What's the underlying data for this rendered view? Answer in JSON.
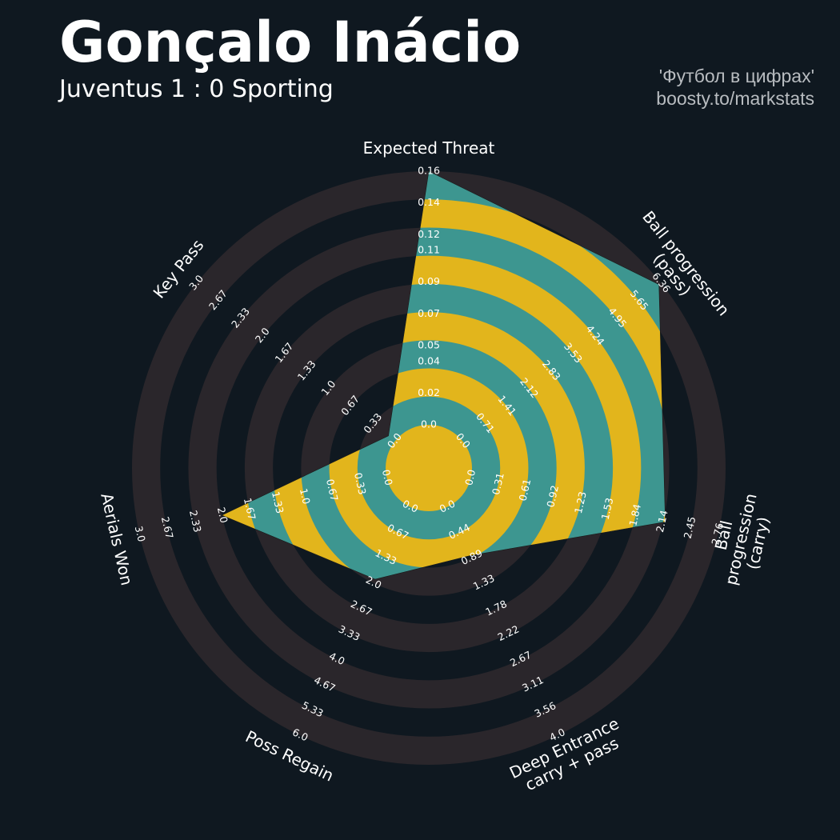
{
  "chart_data": {
    "type": "radar",
    "title": "Gonçalo Inácio",
    "subtitle": "Juventus 1 : 0 Sporting",
    "credits": [
      "'Футбол в цифрах'",
      "boosty.to/markstats"
    ],
    "categories": [
      "Expected Threat",
      "Ball progression (pass)",
      "Ball progression (carry)",
      "Deep Entrance\ncarry + pass",
      "Poss Regain",
      "Aerials Won",
      "Key Pass"
    ],
    "values": [
      0.16,
      6.3,
      2.17,
      0.85,
      1.9,
      2.0,
      0.1
    ],
    "ranges": [
      [
        0,
        0.16
      ],
      [
        0,
        6.36
      ],
      [
        0,
        2.76
      ],
      [
        0,
        4.0
      ],
      [
        0,
        6.0
      ],
      [
        0,
        3.0
      ],
      [
        0,
        3.0
      ]
    ],
    "ticks": [
      [
        {
          "value": 0,
          "label": "0.0"
        },
        0.02,
        0.04,
        0.05,
        0.07,
        0.09,
        0.11,
        0.12,
        0.14,
        0.16
      ],
      [
        {
          "value": 0,
          "label": "0.0"
        },
        0.71,
        1.41,
        2.12,
        2.83,
        3.53,
        4.24,
        4.95,
        5.65,
        6.36
      ],
      [
        {
          "value": 0,
          "label": "0.0"
        },
        0.31,
        0.61,
        0.92,
        1.23,
        1.53,
        1.84,
        2.14,
        2.45,
        2.76
      ],
      [
        {
          "value": 0,
          "label": "0.0"
        },
        0.44,
        0.89,
        1.33,
        1.78,
        2.22,
        2.67,
        3.11,
        3.56,
        {
          "value": 4,
          "label": "4.0"
        }
      ],
      [
        {
          "value": 0,
          "label": "0.0"
        },
        0.67,
        1.33,
        {
          "value": 2,
          "label": "2.0"
        },
        2.67,
        3.33,
        {
          "value": 4,
          "label": "4.0"
        },
        4.67,
        5.33,
        {
          "value": 6,
          "label": "6.0"
        }
      ],
      [
        {
          "value": 0,
          "label": "0.0"
        },
        0.33,
        0.67,
        {
          "value": 1,
          "label": "1.0"
        },
        1.33,
        1.67,
        {
          "value": 2,
          "label": "2.0"
        },
        2.33,
        2.67,
        {
          "value": 3,
          "label": "3.0"
        }
      ],
      [
        {
          "value": 0,
          "label": "0.0"
        },
        0.33,
        0.67,
        {
          "value": 1,
          "label": "1.0"
        },
        1.33,
        1.67,
        {
          "value": 2,
          "label": "2.0"
        },
        2.33,
        2.67,
        {
          "value": 3,
          "label": "3.0"
        }
      ]
    ],
    "colors": {
      "background": "#0f1820",
      "rings": "#2a262b",
      "fill": "#3d9690",
      "fill_alt": "#e2b51c"
    }
  }
}
